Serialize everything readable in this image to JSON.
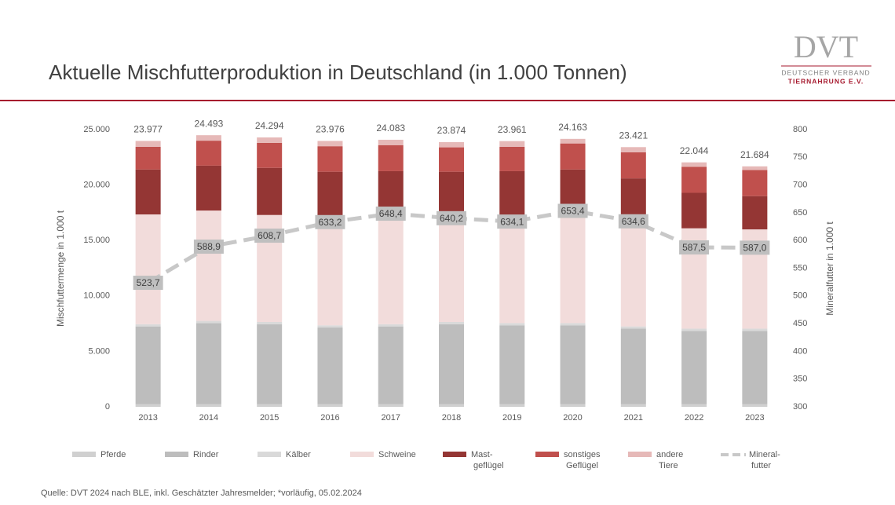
{
  "header": {
    "title": "Aktuelle Mischfutterproduktion in Deutschland (in 1.000 Tonnen)",
    "logo": "DVT",
    "logo_line1": "DEUTSCHER VERBAND",
    "logo_line2": "TIERNAHRUNG E.V."
  },
  "chart_data": {
    "type": "bar",
    "categories": [
      "2013",
      "2014",
      "2015",
      "2016",
      "2017",
      "2018",
      "2019",
      "2020",
      "2021",
      "2022",
      "2023"
    ],
    "ylabel": "Mischfuttermenge in 1.000 t",
    "y2label": "Mineralfutter in 1.000 t",
    "ylim": [
      0,
      25000
    ],
    "yticks": [
      {
        "value": 0,
        "label": "0"
      },
      {
        "value": 5000,
        "label": "5.000"
      },
      {
        "value": 10000,
        "label": "10.000"
      },
      {
        "value": 15000,
        "label": "15.000"
      },
      {
        "value": 20000,
        "label": "20.000"
      },
      {
        "value": 25000,
        "label": "25.000"
      }
    ],
    "y2lim": [
      300,
      800
    ],
    "y2ticks": [
      300,
      350,
      400,
      450,
      500,
      550,
      600,
      650,
      700,
      750,
      800
    ],
    "series": [
      {
        "name": "Pferde",
        "color": "#d0d0d0",
        "values": [
          250,
          250,
          250,
          250,
          250,
          250,
          250,
          250,
          250,
          250,
          250
        ]
      },
      {
        "name": "Rinder",
        "color": "#bdbdbd",
        "values": [
          7000,
          7300,
          7200,
          6900,
          7000,
          7200,
          7100,
          7100,
          6800,
          6600,
          6600
        ]
      },
      {
        "name": "Kälber",
        "color": "#d9d9d9",
        "values": [
          200,
          200,
          200,
          200,
          200,
          200,
          200,
          200,
          200,
          200,
          200
        ]
      },
      {
        "name": "Schweine",
        "color": "#f2dcdb",
        "values": [
          9900,
          9950,
          9650,
          9750,
          9450,
          9350,
          9400,
          9700,
          9650,
          9050,
          8950
        ]
      },
      {
        "name": "Mast-\ngeflügel",
        "color": "#943634",
        "values": [
          4050,
          4050,
          4250,
          4100,
          4350,
          4200,
          4300,
          4150,
          3700,
          3200,
          3000
        ]
      },
      {
        "name": "sonstiges\nGeflügel",
        "color": "#c0504d",
        "values": [
          2050,
          2250,
          2250,
          2300,
          2350,
          2200,
          2200,
          2350,
          2350,
          2350,
          2350
        ]
      },
      {
        "name": "andere\nTiere",
        "color": "#e6b9b8",
        "values": [
          527,
          493,
          494,
          476,
          483,
          474,
          511,
          413,
          471,
          394,
          334
        ]
      },
      {
        "name": "Mineral-\nfutter",
        "color": "#c8c8c8",
        "type": "line",
        "axis": "y2",
        "values": [
          523.7,
          588.9,
          608.7,
          633.2,
          648.4,
          640.2,
          634.1,
          653.4,
          634.6,
          587.5,
          587.0
        ],
        "value_labels": [
          "523,7",
          "588,9",
          "608,7",
          "633,2",
          "648,4",
          "640,2",
          "634,1",
          "653,4",
          "634,6",
          "587,5",
          "587,0"
        ]
      }
    ],
    "totals": {
      "values": [
        23977,
        24493,
        24294,
        23976,
        24083,
        23874,
        23961,
        24163,
        23421,
        22044,
        21684
      ],
      "value_labels": [
        "23.977",
        "24.493",
        "24.294",
        "23.976",
        "24.083",
        "23.874",
        "23.961",
        "24.163",
        "23.421",
        "22.044",
        "21.684"
      ]
    },
    "source": "Quelle: DVT 2024 nach BLE, inkl. Geschätzter Jahresmelder; *vorläufig, 05.02.2024"
  }
}
